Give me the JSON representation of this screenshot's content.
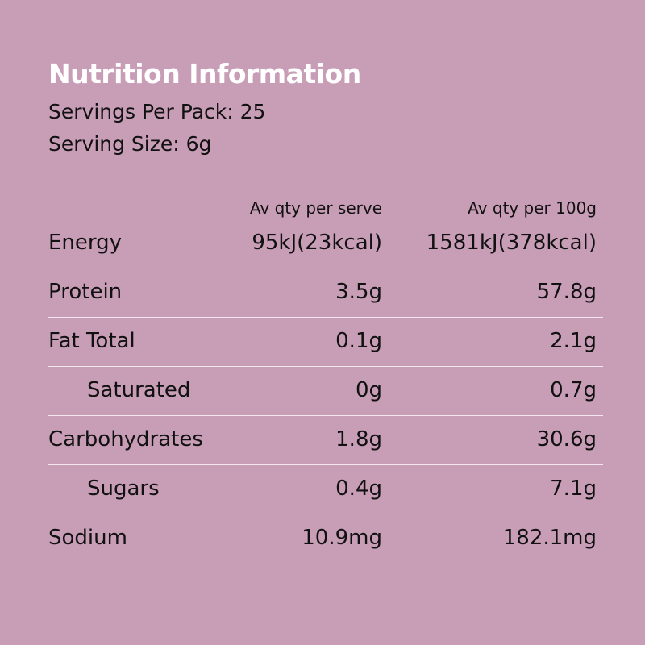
{
  "header": {
    "title": "Nutrition Information",
    "servings": "Servings Per Pack: 25",
    "serving_size": "Serving Size: 6g"
  },
  "table": {
    "columns": [
      "Av qty per serve",
      "Av qty per 100g"
    ],
    "rows": [
      [
        "Energy",
        "95kJ(23kcal)",
        "1581kJ(378kcal)"
      ],
      [
        "Protein",
        "3.5g",
        "57.8g"
      ],
      [
        "Fat Total",
        "0.1g",
        "2.1g"
      ],
      [
        "Saturated",
        "0g",
        "0.7g"
      ],
      [
        "Carbohydrates",
        "1.8g",
        "30.6g"
      ],
      [
        "Sugars",
        "0.4g",
        "7.1g"
      ],
      [
        "Sodium",
        "10.9mg",
        "182.1mg"
      ]
    ]
  }
}
